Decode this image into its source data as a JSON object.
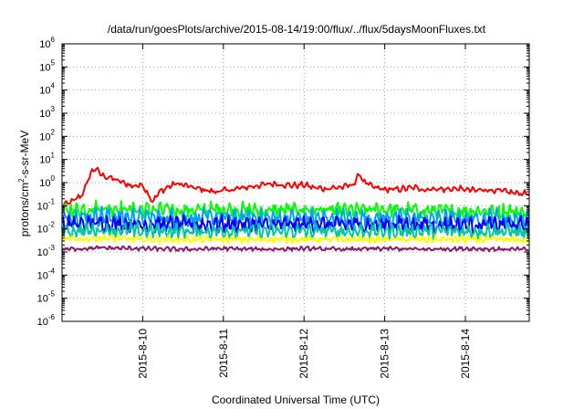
{
  "chart_data": {
    "type": "line",
    "title": "/data/run/goesPlots/archive/2015-08-14/19:00/flux/../flux/5daysMoonFluxes.txt",
    "xlabel": "Coordinated Universal Time (UTC)",
    "ylabel_prefix": "protons/cm",
    "ylabel_sup": "2",
    "ylabel_suffix": "-s-sr-MeV",
    "yscale": "log",
    "ylim": [
      1e-06,
      1000000.0
    ],
    "xlim": [
      "2015-08-09 00:00",
      "2015-08-14 19:00"
    ],
    "grid": true,
    "legend": "none",
    "y_ticks": [
      {
        "base": "10",
        "exp": "6"
      },
      {
        "base": "10",
        "exp": "5"
      },
      {
        "base": "10",
        "exp": "4"
      },
      {
        "base": "10",
        "exp": "3"
      },
      {
        "base": "10",
        "exp": "2"
      },
      {
        "base": "10",
        "exp": "1"
      },
      {
        "base": "10",
        "exp": "0"
      },
      {
        "base": "10",
        "exp": "-1"
      },
      {
        "base": "10",
        "exp": "-2"
      },
      {
        "base": "10",
        "exp": "-3"
      },
      {
        "base": "10",
        "exp": "-4"
      },
      {
        "base": "10",
        "exp": "-5"
      },
      {
        "base": "10",
        "exp": "-6"
      }
    ],
    "x_ticks": [
      "2015-8-10",
      "2015-8-11",
      "2015-8-12",
      "2015-8-13",
      "2015-8-14"
    ],
    "series": [
      {
        "color": "#ff0000",
        "x": [
          "2015-08-09 00:00",
          "2015-08-09 03:00",
          "2015-08-09 06:00",
          "2015-08-09 09:00",
          "2015-08-09 10:00",
          "2015-08-09 12:00",
          "2015-08-09 15:00",
          "2015-08-09 18:00",
          "2015-08-09 21:00",
          "2015-08-10 00:00",
          "2015-08-10 03:00",
          "2015-08-10 05:00",
          "2015-08-10 08:00",
          "2015-08-10 10:00",
          "2015-08-10 12:00",
          "2015-08-10 15:00",
          "2015-08-10 18:00",
          "2015-08-10 21:00",
          "2015-08-11 00:00",
          "2015-08-11 03:00",
          "2015-08-11 06:00",
          "2015-08-11 09:00",
          "2015-08-11 12:00",
          "2015-08-11 15:00",
          "2015-08-11 18:00",
          "2015-08-11 21:00",
          "2015-08-12 00:00",
          "2015-08-12 03:00",
          "2015-08-12 06:00",
          "2015-08-12 09:00",
          "2015-08-12 12:00",
          "2015-08-12 15:00",
          "2015-08-12 16:30",
          "2015-08-12 18:00",
          "2015-08-12 21:00",
          "2015-08-13 00:00",
          "2015-08-13 03:00",
          "2015-08-13 06:00",
          "2015-08-13 09:00",
          "2015-08-13 12:00",
          "2015-08-13 15:00",
          "2015-08-13 18:00",
          "2015-08-13 21:00",
          "2015-08-14 00:00",
          "2015-08-14 03:00",
          "2015-08-14 06:00",
          "2015-08-14 09:00",
          "2015-08-14 12:00",
          "2015-08-14 15:00",
          "2015-08-14 19:00"
        ],
        "y": [
          0.1,
          0.15,
          0.3,
          3.5,
          4.0,
          2.0,
          1.5,
          1.0,
          0.7,
          0.8,
          0.15,
          0.4,
          0.7,
          0.9,
          0.8,
          0.6,
          0.5,
          0.4,
          0.45,
          0.5,
          0.6,
          0.7,
          0.8,
          0.9,
          0.8,
          0.75,
          0.8,
          0.6,
          0.55,
          0.6,
          0.65,
          0.9,
          2.5,
          1.0,
          0.6,
          0.5,
          0.5,
          0.55,
          0.6,
          0.5,
          0.55,
          0.5,
          0.55,
          0.5,
          0.45,
          0.5,
          0.45,
          0.4,
          0.35,
          0.35
        ]
      },
      {
        "color": "#00ff00",
        "x": [
          "2015-08-09 00:00",
          "2015-08-09 12:00",
          "2015-08-10 00:00",
          "2015-08-10 12:00",
          "2015-08-11 00:00",
          "2015-08-11 12:00",
          "2015-08-12 00:00",
          "2015-08-12 12:00",
          "2015-08-13 00:00",
          "2015-08-13 12:00",
          "2015-08-14 00:00",
          "2015-08-14 12:00",
          "2015-08-14 19:00"
        ],
        "y": [
          0.06,
          0.08,
          0.07,
          0.06,
          0.07,
          0.06,
          0.07,
          0.06,
          0.07,
          0.06,
          0.06,
          0.06,
          0.05
        ]
      },
      {
        "color": "#00a0ff",
        "x": [
          "2015-08-09 00:00",
          "2015-08-09 12:00",
          "2015-08-10 00:00",
          "2015-08-10 12:00",
          "2015-08-11 00:00",
          "2015-08-11 12:00",
          "2015-08-12 00:00",
          "2015-08-12 12:00",
          "2015-08-13 00:00",
          "2015-08-13 12:00",
          "2015-08-14 00:00",
          "2015-08-14 12:00",
          "2015-08-14 19:00"
        ],
        "y": [
          0.03,
          0.035,
          0.03,
          0.028,
          0.03,
          0.028,
          0.03,
          0.028,
          0.03,
          0.028,
          0.028,
          0.027,
          0.025
        ]
      },
      {
        "color": "#0000ff",
        "x": [
          "2015-08-09 00:00",
          "2015-08-09 12:00",
          "2015-08-10 00:00",
          "2015-08-10 12:00",
          "2015-08-11 00:00",
          "2015-08-11 12:00",
          "2015-08-12 00:00",
          "2015-08-12 12:00",
          "2015-08-13 00:00",
          "2015-08-13 12:00",
          "2015-08-14 00:00",
          "2015-08-14 12:00",
          "2015-08-14 19:00"
        ],
        "y": [
          0.015,
          0.018,
          0.016,
          0.015,
          0.016,
          0.015,
          0.016,
          0.015,
          0.016,
          0.015,
          0.015,
          0.015,
          0.014
        ]
      },
      {
        "color": "#00c8a0",
        "x": [
          "2015-08-09 00:00",
          "2015-08-09 12:00",
          "2015-08-10 00:00",
          "2015-08-10 12:00",
          "2015-08-11 00:00",
          "2015-08-11 12:00",
          "2015-08-12 00:00",
          "2015-08-12 12:00",
          "2015-08-13 00:00",
          "2015-08-13 12:00",
          "2015-08-14 00:00",
          "2015-08-14 12:00",
          "2015-08-14 19:00"
        ],
        "y": [
          0.008,
          0.009,
          0.008,
          0.008,
          0.008,
          0.008,
          0.008,
          0.008,
          0.008,
          0.008,
          0.008,
          0.008,
          0.007
        ]
      },
      {
        "color": "#ffff00",
        "x": [
          "2015-08-09 00:00",
          "2015-08-09 12:00",
          "2015-08-10 00:00",
          "2015-08-10 12:00",
          "2015-08-11 00:00",
          "2015-08-11 12:00",
          "2015-08-12 00:00",
          "2015-08-12 12:00",
          "2015-08-13 00:00",
          "2015-08-13 12:00",
          "2015-08-14 00:00",
          "2015-08-14 12:00",
          "2015-08-14 19:00"
        ],
        "y": [
          0.0035,
          0.004,
          0.0035,
          0.0035,
          0.0035,
          0.0035,
          0.0035,
          0.0035,
          0.0035,
          0.0035,
          0.0035,
          0.0035,
          0.0032
        ]
      },
      {
        "color": "#8b1a6b",
        "x": [
          "2015-08-09 00:00",
          "2015-08-09 12:00",
          "2015-08-10 00:00",
          "2015-08-10 12:00",
          "2015-08-11 00:00",
          "2015-08-11 12:00",
          "2015-08-12 00:00",
          "2015-08-12 12:00",
          "2015-08-13 00:00",
          "2015-08-13 12:00",
          "2015-08-14 00:00",
          "2015-08-14 12:00",
          "2015-08-14 19:00"
        ],
        "y": [
          0.0013,
          0.0015,
          0.0014,
          0.0013,
          0.0014,
          0.0013,
          0.0014,
          0.0013,
          0.0014,
          0.0013,
          0.0014,
          0.0013,
          0.0013
        ]
      }
    ]
  }
}
